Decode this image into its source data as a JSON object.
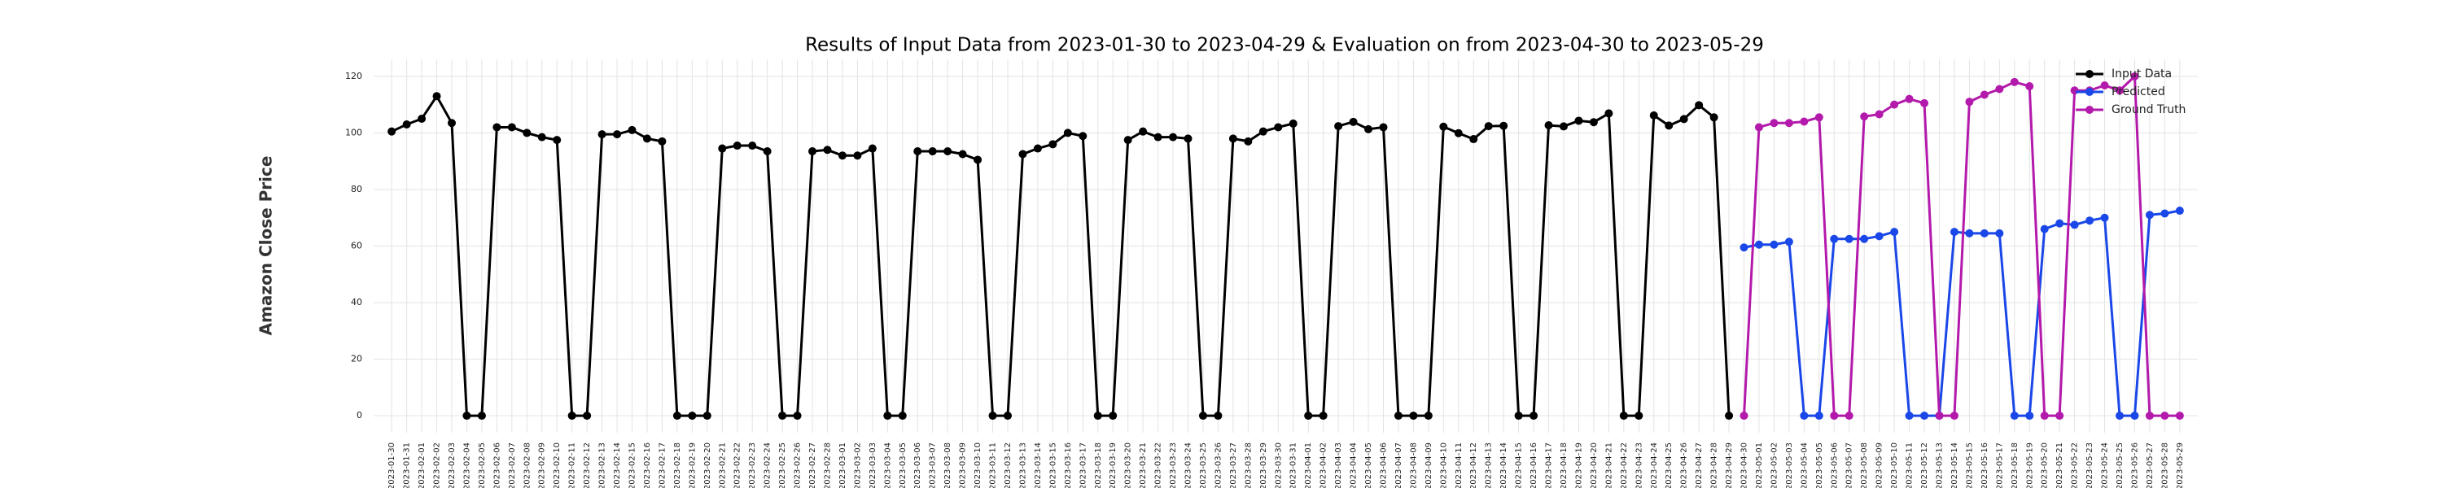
{
  "chart_data": {
    "type": "line",
    "title": "Results of Input Data from 2023-01-30 to 2023-04-29 & Evaluation on from 2023-04-30 to 2023-05-29",
    "ylabel": "Amazon Close Price",
    "categories": [
      "2023-01-30",
      "2023-01-31",
      "2023-02-01",
      "2023-02-02",
      "2023-02-03",
      "2023-02-04",
      "2023-02-05",
      "2023-02-06",
      "2023-02-07",
      "2023-02-08",
      "2023-02-09",
      "2023-02-10",
      "2023-02-11",
      "2023-02-12",
      "2023-02-13",
      "2023-02-14",
      "2023-02-15",
      "2023-02-16",
      "2023-02-17",
      "2023-02-18",
      "2023-02-19",
      "2023-02-20",
      "2023-02-21",
      "2023-02-22",
      "2023-02-23",
      "2023-02-24",
      "2023-02-25",
      "2023-02-26",
      "2023-02-27",
      "2023-02-28",
      "2023-03-01",
      "2023-03-02",
      "2023-03-03",
      "2023-03-04",
      "2023-03-05",
      "2023-03-06",
      "2023-03-07",
      "2023-03-08",
      "2023-03-09",
      "2023-03-10",
      "2023-03-11",
      "2023-03-12",
      "2023-03-13",
      "2023-03-14",
      "2023-03-15",
      "2023-03-16",
      "2023-03-17",
      "2023-03-18",
      "2023-03-19",
      "2023-03-20",
      "2023-03-21",
      "2023-03-22",
      "2023-03-23",
      "2023-03-24",
      "2023-03-25",
      "2023-03-26",
      "2023-03-27",
      "2023-03-28",
      "2023-03-29",
      "2023-03-30",
      "2023-03-31",
      "2023-04-01",
      "2023-04-02",
      "2023-04-03",
      "2023-04-04",
      "2023-04-05",
      "2023-04-06",
      "2023-04-07",
      "2023-04-08",
      "2023-04-09",
      "2023-04-10",
      "2023-04-11",
      "2023-04-12",
      "2023-04-13",
      "2023-04-14",
      "2023-04-15",
      "2023-04-16",
      "2023-04-17",
      "2023-04-18",
      "2023-04-19",
      "2023-04-20",
      "2023-04-21",
      "2023-04-22",
      "2023-04-23",
      "2023-04-24",
      "2023-04-25",
      "2023-04-26",
      "2023-04-27",
      "2023-04-28",
      "2023-04-29",
      "2023-04-30",
      "2023-05-01",
      "2023-05-02",
      "2023-05-03",
      "2023-05-04",
      "2023-05-05",
      "2023-05-06",
      "2023-05-07",
      "2023-05-08",
      "2023-05-09",
      "2023-05-10",
      "2023-05-11",
      "2023-05-12",
      "2023-05-13",
      "2023-05-14",
      "2023-05-15",
      "2023-05-16",
      "2023-05-17",
      "2023-05-18",
      "2023-05-19",
      "2023-05-20",
      "2023-05-21",
      "2023-05-22",
      "2023-05-23",
      "2023-05-24",
      "2023-05-25",
      "2023-05-26",
      "2023-05-27",
      "2023-05-28",
      "2023-05-29"
    ],
    "series": [
      {
        "name": "Input Data",
        "color": "#000000",
        "values": [
          100.5,
          103,
          105,
          113,
          103.5,
          0,
          0,
          102,
          102,
          100,
          98.5,
          97.5,
          0,
          0,
          99.5,
          99.5,
          101,
          98,
          97,
          0,
          0,
          0,
          94.5,
          95.5,
          95.5,
          93.5,
          0,
          0,
          93.5,
          94,
          92,
          92,
          94.5,
          0,
          0,
          93.5,
          93.5,
          93.5,
          92.5,
          90.5,
          0,
          0,
          92.5,
          94.5,
          96,
          100,
          98.9,
          0,
          0,
          97.5,
          100.5,
          98.5,
          98.5,
          98,
          0,
          0,
          98,
          97,
          100.5,
          102,
          103.3,
          0,
          0,
          102.4,
          103.9,
          101.3,
          102,
          0,
          0,
          0,
          102.2,
          99.9,
          97.8,
          102.4,
          102.5,
          0,
          0,
          102.7,
          102.3,
          104.3,
          103.8,
          106.9,
          0,
          0,
          106.2,
          102.6,
          104.9,
          109.8,
          105.5,
          0,
          null,
          null,
          null,
          null,
          null,
          null,
          null,
          null,
          null,
          null,
          null,
          null,
          null,
          null,
          null,
          null,
          null,
          null,
          null,
          null,
          null,
          null,
          null,
          null,
          null,
          null,
          null,
          null,
          null,
          null
        ]
      },
      {
        "name": "Predicted",
        "color": "#1a47e8",
        "values": [
          null,
          null,
          null,
          null,
          null,
          null,
          null,
          null,
          null,
          null,
          null,
          null,
          null,
          null,
          null,
          null,
          null,
          null,
          null,
          null,
          null,
          null,
          null,
          null,
          null,
          null,
          null,
          null,
          null,
          null,
          null,
          null,
          null,
          null,
          null,
          null,
          null,
          null,
          null,
          null,
          null,
          null,
          null,
          null,
          null,
          null,
          null,
          null,
          null,
          null,
          null,
          null,
          null,
          null,
          null,
          null,
          null,
          null,
          null,
          null,
          null,
          null,
          null,
          null,
          null,
          null,
          null,
          null,
          null,
          null,
          null,
          null,
          null,
          null,
          null,
          null,
          null,
          null,
          null,
          null,
          null,
          null,
          null,
          null,
          null,
          null,
          null,
          null,
          null,
          null,
          59.5,
          60.5,
          60.5,
          61.5,
          0,
          0,
          62.5,
          62.5,
          62.5,
          63.5,
          65,
          0,
          0,
          0,
          65,
          64.5,
          64.5,
          64.5,
          0,
          0,
          66,
          68,
          67.5,
          69,
          70,
          0,
          0,
          71,
          71.5,
          72.5
        ]
      },
      {
        "name": "Ground Truth",
        "color": "#b31aab",
        "values": [
          null,
          null,
          null,
          null,
          null,
          null,
          null,
          null,
          null,
          null,
          null,
          null,
          null,
          null,
          null,
          null,
          null,
          null,
          null,
          null,
          null,
          null,
          null,
          null,
          null,
          null,
          null,
          null,
          null,
          null,
          null,
          null,
          null,
          null,
          null,
          null,
          null,
          null,
          null,
          null,
          null,
          null,
          null,
          null,
          null,
          null,
          null,
          null,
          null,
          null,
          null,
          null,
          null,
          null,
          null,
          null,
          null,
          null,
          null,
          null,
          null,
          null,
          null,
          null,
          null,
          null,
          null,
          null,
          null,
          null,
          null,
          null,
          null,
          null,
          null,
          null,
          null,
          null,
          null,
          null,
          null,
          null,
          null,
          null,
          null,
          null,
          null,
          null,
          null,
          null,
          0,
          102,
          103.5,
          103.5,
          104,
          105.5,
          0,
          0,
          105.8,
          106.6,
          110,
          112,
          110.5,
          0,
          0,
          111,
          113.5,
          115.5,
          118,
          116.5,
          0,
          0,
          115,
          115,
          116.8,
          115,
          120,
          0,
          0,
          0
        ]
      }
    ],
    "ylim": [
      -6,
      126
    ],
    "yticks": [
      0,
      20,
      40,
      60,
      80,
      100,
      120
    ],
    "grid": true,
    "legend": "upper right"
  }
}
